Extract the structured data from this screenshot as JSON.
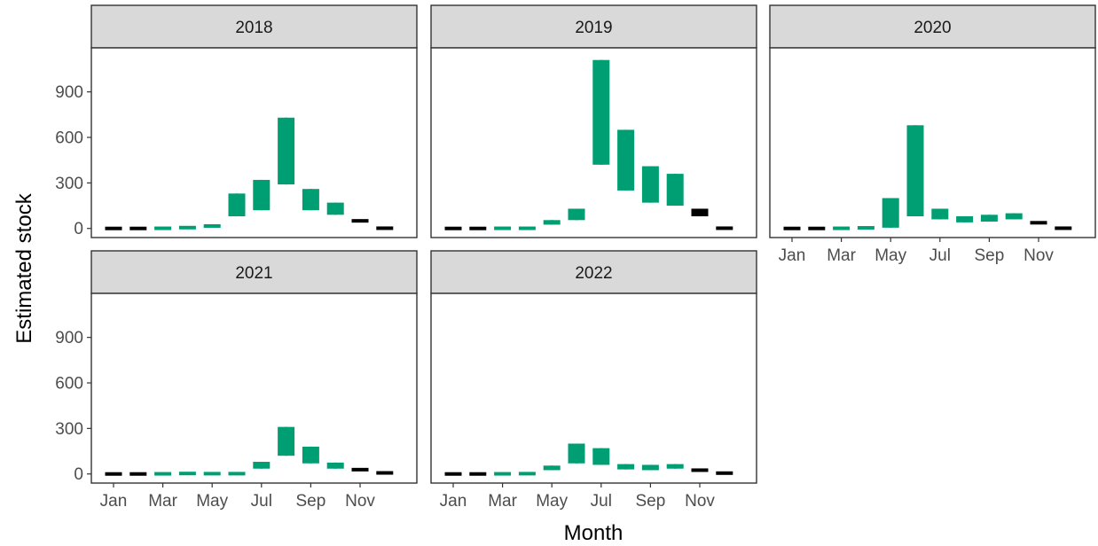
{
  "chart_data": {
    "type": "interval-facets",
    "xlabel": "Month",
    "ylabel": "Estimated stock",
    "ylim": [
      -60,
      1190
    ],
    "yticks": [
      0,
      300,
      600,
      900
    ],
    "months": [
      "Jan",
      "Feb",
      "Mar",
      "Apr",
      "May",
      "Jun",
      "Jul",
      "Aug",
      "Sep",
      "Oct",
      "Nov",
      "Dec"
    ],
    "xtick_labels": [
      "Jan",
      "Mar",
      "May",
      "Jul",
      "Sep",
      "Nov"
    ],
    "colors": {
      "modelled": "#009E73",
      "fixed": "#000000",
      "strip": "#d9d9d9",
      "frame": "#333333"
    },
    "fixed_months": [
      "Jan",
      "Feb",
      "Nov",
      "Dec"
    ],
    "facets": [
      {
        "year": "2018",
        "stats": [
          [
            0,
            0,
            0,
            0
          ],
          [
            0,
            0,
            0,
            0
          ],
          [
            -2,
            0,
            2,
            4
          ],
          [
            0,
            3,
            7,
            11
          ],
          [
            8,
            12,
            18,
            24
          ],
          [
            80,
            110,
            170,
            230
          ],
          [
            120,
            160,
            240,
            320
          ],
          [
            290,
            370,
            540,
            730
          ],
          [
            120,
            150,
            210,
            260
          ],
          [
            90,
            105,
            140,
            170
          ],
          [
            40,
            45,
            55,
            60
          ],
          [
            -2,
            0,
            3,
            5
          ]
        ]
      },
      {
        "year": "2019",
        "stats": [
          [
            0,
            0,
            0,
            0
          ],
          [
            0,
            0,
            0,
            0
          ],
          [
            -2,
            0,
            2,
            4
          ],
          [
            -2,
            0,
            2,
            4
          ],
          [
            25,
            30,
            45,
            55
          ],
          [
            55,
            70,
            105,
            130
          ],
          [
            420,
            540,
            820,
            1110
          ],
          [
            250,
            320,
            490,
            650
          ],
          [
            170,
            210,
            330,
            410
          ],
          [
            150,
            190,
            290,
            360
          ],
          [
            80,
            90,
            110,
            130
          ],
          [
            -2,
            0,
            3,
            5
          ]
        ]
      },
      {
        "year": "2020",
        "stats": [
          [
            0,
            0,
            0,
            0
          ],
          [
            0,
            0,
            0,
            0
          ],
          [
            -2,
            0,
            2,
            4
          ],
          [
            -2,
            0,
            5,
            10
          ],
          [
            5,
            15,
            80,
            200
          ],
          [
            80,
            110,
            260,
            680
          ],
          [
            60,
            70,
            100,
            130
          ],
          [
            40,
            45,
            65,
            80
          ],
          [
            45,
            50,
            75,
            90
          ],
          [
            60,
            70,
            90,
            100
          ],
          [
            30,
            33,
            40,
            45
          ],
          [
            -2,
            0,
            3,
            5
          ]
        ]
      },
      {
        "year": "2021",
        "stats": [
          [
            0,
            0,
            0,
            0
          ],
          [
            0,
            0,
            0,
            0
          ],
          [
            -2,
            0,
            2,
            4
          ],
          [
            -2,
            0,
            4,
            8
          ],
          [
            -2,
            0,
            3,
            6
          ],
          [
            -2,
            0,
            3,
            6
          ],
          [
            35,
            45,
            70,
            80
          ],
          [
            120,
            150,
            250,
            310
          ],
          [
            70,
            90,
            150,
            180
          ],
          [
            35,
            45,
            65,
            75
          ],
          [
            22,
            25,
            32,
            35
          ],
          [
            2,
            4,
            9,
            12
          ]
        ]
      },
      {
        "year": "2022",
        "stats": [
          [
            0,
            0,
            0,
            0
          ],
          [
            0,
            0,
            0,
            0
          ],
          [
            -2,
            0,
            2,
            4
          ],
          [
            -2,
            0,
            3,
            6
          ],
          [
            25,
            30,
            45,
            55
          ],
          [
            70,
            90,
            160,
            200
          ],
          [
            60,
            80,
            135,
            170
          ],
          [
            30,
            35,
            55,
            65
          ],
          [
            25,
            30,
            50,
            60
          ],
          [
            35,
            40,
            55,
            65
          ],
          [
            20,
            22,
            28,
            30
          ],
          [
            0,
            3,
            8,
            11
          ]
        ]
      }
    ]
  }
}
